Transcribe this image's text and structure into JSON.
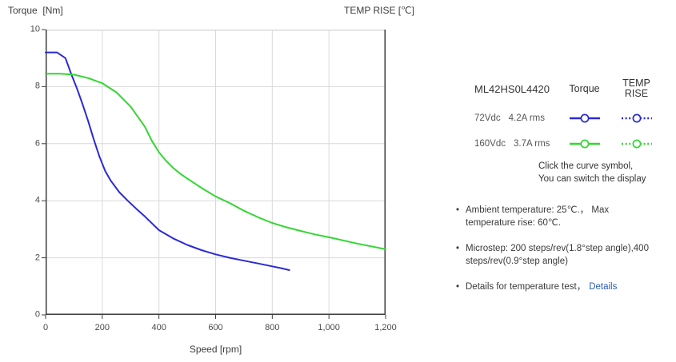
{
  "chart": {
    "y_axis_title": "Torque  [Nm]",
    "y2_axis_title": "TEMP RISE [℃]",
    "x_axis_title": "Speed [rpm]"
  },
  "chart_data": {
    "type": "line",
    "title": "",
    "xlabel": "Speed [rpm]",
    "ylabel": "Torque [Nm]",
    "y2label": "TEMP RISE [℃]",
    "xlim": [
      0,
      1200
    ],
    "ylim": [
      0,
      10
    ],
    "grid": true,
    "xtick_labels": [
      "0",
      "200",
      "400",
      "600",
      "800",
      "1,000",
      "1,200"
    ],
    "ytick_labels_top_down": [
      "10",
      "8",
      "6",
      "4",
      "2",
      "0"
    ],
    "colors": {
      "grid": "#d9d9d9",
      "axis": "#3c3c3c"
    },
    "series": [
      {
        "name": "72Vdc 4.2A rms Torque",
        "color": "#2a2ad6",
        "x": [
          0,
          40,
          70,
          90,
          110,
          130,
          150,
          170,
          190,
          210,
          230,
          260,
          290,
          320,
          350,
          400,
          450,
          500,
          550,
          600,
          650,
          700,
          750,
          800,
          830,
          860
        ],
        "y": [
          9.2,
          9.2,
          9.0,
          8.45,
          7.95,
          7.4,
          6.8,
          6.15,
          5.55,
          5.05,
          4.7,
          4.3,
          4.0,
          3.72,
          3.45,
          2.97,
          2.68,
          2.45,
          2.27,
          2.12,
          2.0,
          1.9,
          1.8,
          1.7,
          1.64,
          1.57
        ]
      },
      {
        "name": "160Vdc 3.7A rms Torque",
        "color": "#33d633",
        "x": [
          0,
          50,
          100,
          150,
          200,
          250,
          300,
          350,
          375,
          400,
          425,
          450,
          475,
          500,
          550,
          600,
          650,
          700,
          750,
          800,
          850,
          900,
          950,
          1000,
          1050,
          1100,
          1150,
          1200
        ],
        "y": [
          8.45,
          8.45,
          8.42,
          8.3,
          8.12,
          7.8,
          7.3,
          6.6,
          6.1,
          5.7,
          5.4,
          5.15,
          4.95,
          4.78,
          4.45,
          4.15,
          3.92,
          3.65,
          3.42,
          3.22,
          3.07,
          2.94,
          2.82,
          2.72,
          2.61,
          2.5,
          2.4,
          2.3
        ]
      }
    ]
  },
  "legend": {
    "model": "ML42HS0L4420",
    "col_torque": "Torque",
    "col_temp_rise": "TEMP RISE",
    "rows": [
      {
        "voltage": "72Vdc",
        "current": "4.2A rms",
        "color": "#2a2ad6"
      },
      {
        "voltage": "160Vdc",
        "current": "3.7A rms",
        "color": "#33d633"
      }
    ],
    "hint_lines": [
      "Click the curve symbol,",
      "You can switch the display"
    ]
  },
  "notes": [
    {
      "lines": [
        "Ambient temperature: 25℃.， Max",
        "temperature rise: 60℃."
      ]
    },
    {
      "lines": [
        "Microstep: 200 steps/rev(1.8°step angle),400",
        "steps/rev(0.9°step angle)"
      ]
    },
    {
      "lines": [
        "Details for temperature test，"
      ],
      "link": "Details",
      "link_color": "#2a5db2"
    }
  ]
}
